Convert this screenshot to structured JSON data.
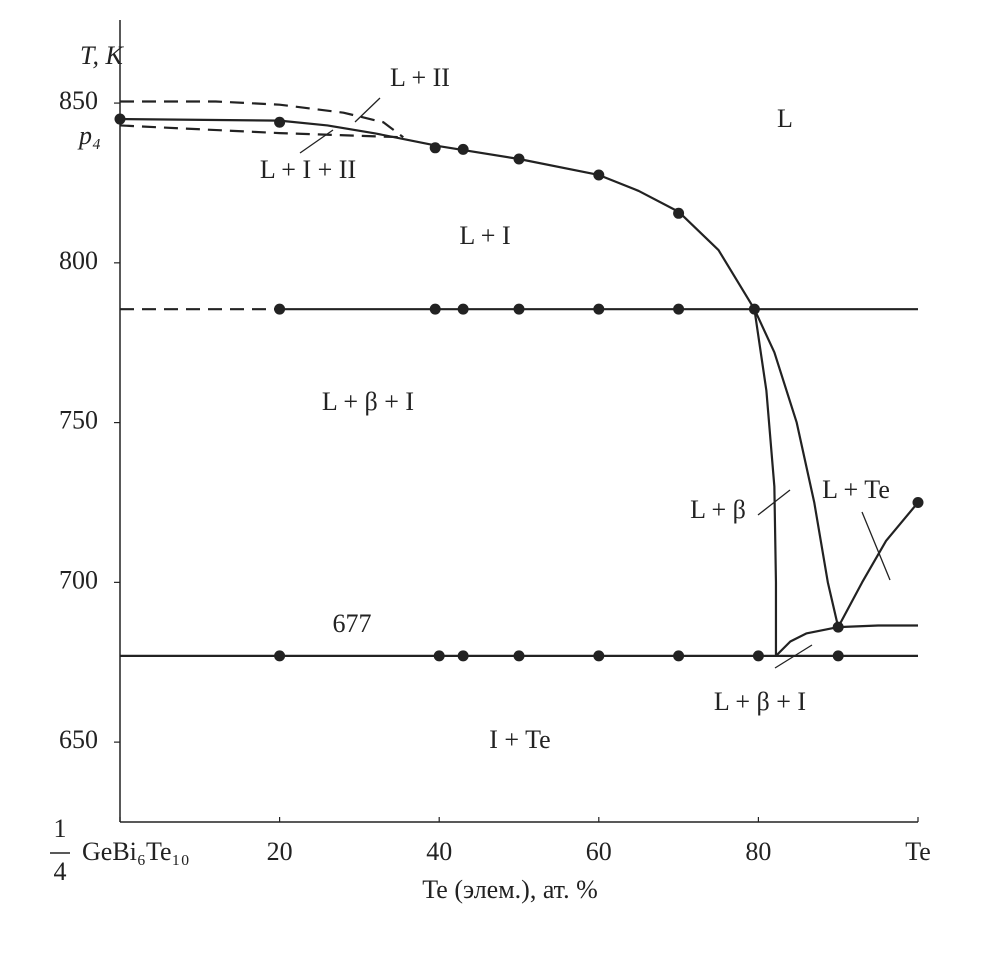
{
  "chart_data": {
    "type": "line",
    "color": "#222222",
    "xlabel": "Te (элем.), ат. %",
    "ylabel": "T, K",
    "xlim": [
      0,
      100
    ],
    "ylim": [
      625,
      876
    ],
    "xticks": [
      {
        "value": 0,
        "label": "GeBi₆Te₁₀"
      },
      20,
      40,
      60,
      80,
      {
        "value": 100,
        "label": "Te"
      }
    ],
    "x_origin_fraction": [
      "1",
      "4"
    ],
    "yticks": [
      650,
      700,
      750,
      800,
      850
    ],
    "series": [
      {
        "style": "solid",
        "x": [
          0,
          20,
          26,
          32,
          36,
          40,
          50,
          60,
          65,
          70,
          75,
          79.5
        ],
        "values": [
          845,
          844.5,
          843,
          840.5,
          838.5,
          836.5,
          832.5,
          827.5,
          822.5,
          816,
          804,
          785.5
        ]
      },
      {
        "style": "dashed",
        "x": [
          0,
          12,
          20,
          28,
          33,
          35.5
        ],
        "values": [
          850.5,
          850.5,
          849.5,
          847,
          844,
          839.3
        ]
      },
      {
        "style": "dashed",
        "x": [
          0,
          20,
          35.5
        ],
        "values": [
          843,
          840.6,
          839.3
        ]
      },
      {
        "style": "dashed",
        "x": [
          0,
          20
        ],
        "values": [
          785.5,
          785.5
        ]
      },
      {
        "style": "solid",
        "x": [
          20,
          100
        ],
        "values": [
          785.5,
          785.5
        ]
      },
      {
        "style": "solid",
        "x": [
          0,
          100
        ],
        "values": [
          677,
          677
        ]
      },
      {
        "style": "solid",
        "x": [
          79.5,
          82,
          84.8,
          87,
          88.7,
          90
        ],
        "values": [
          785.5,
          772,
          750,
          725,
          700,
          686
        ]
      },
      {
        "style": "solid",
        "x": [
          79.5,
          81,
          82,
          82.2,
          82.2
        ],
        "values": [
          785.5,
          760,
          730,
          700,
          677
        ]
      },
      {
        "style": "solid",
        "x": [
          82.2,
          84,
          86,
          90,
          95,
          100
        ],
        "values": [
          677,
          681.5,
          684,
          686,
          686.5,
          686.5
        ]
      },
      {
        "style": "solid",
        "x": [
          90,
          93,
          96,
          100
        ],
        "values": [
          686,
          700,
          713,
          725
        ]
      }
    ],
    "points": {
      "x": [
        0,
        20,
        39.5,
        43,
        50,
        60,
        70,
        79.5,
        20,
        39.5,
        43,
        50,
        60,
        70,
        20,
        40,
        43,
        50,
        60,
        70,
        80,
        90,
        90,
        100
      ],
      "values": [
        845,
        844,
        836,
        835.5,
        832.5,
        827.5,
        815.5,
        785.5,
        785.5,
        785.5,
        785.5,
        785.5,
        785.5,
        785.5,
        677,
        677,
        677,
        677,
        677,
        677,
        677,
        677,
        686,
        725
      ]
    },
    "annotations": [
      "L + II",
      "L",
      "L + I + II",
      "L + I",
      "L + β + I",
      "L + β",
      "L + Te",
      "677",
      "L + β + I",
      "I + Te",
      "p₄"
    ]
  }
}
